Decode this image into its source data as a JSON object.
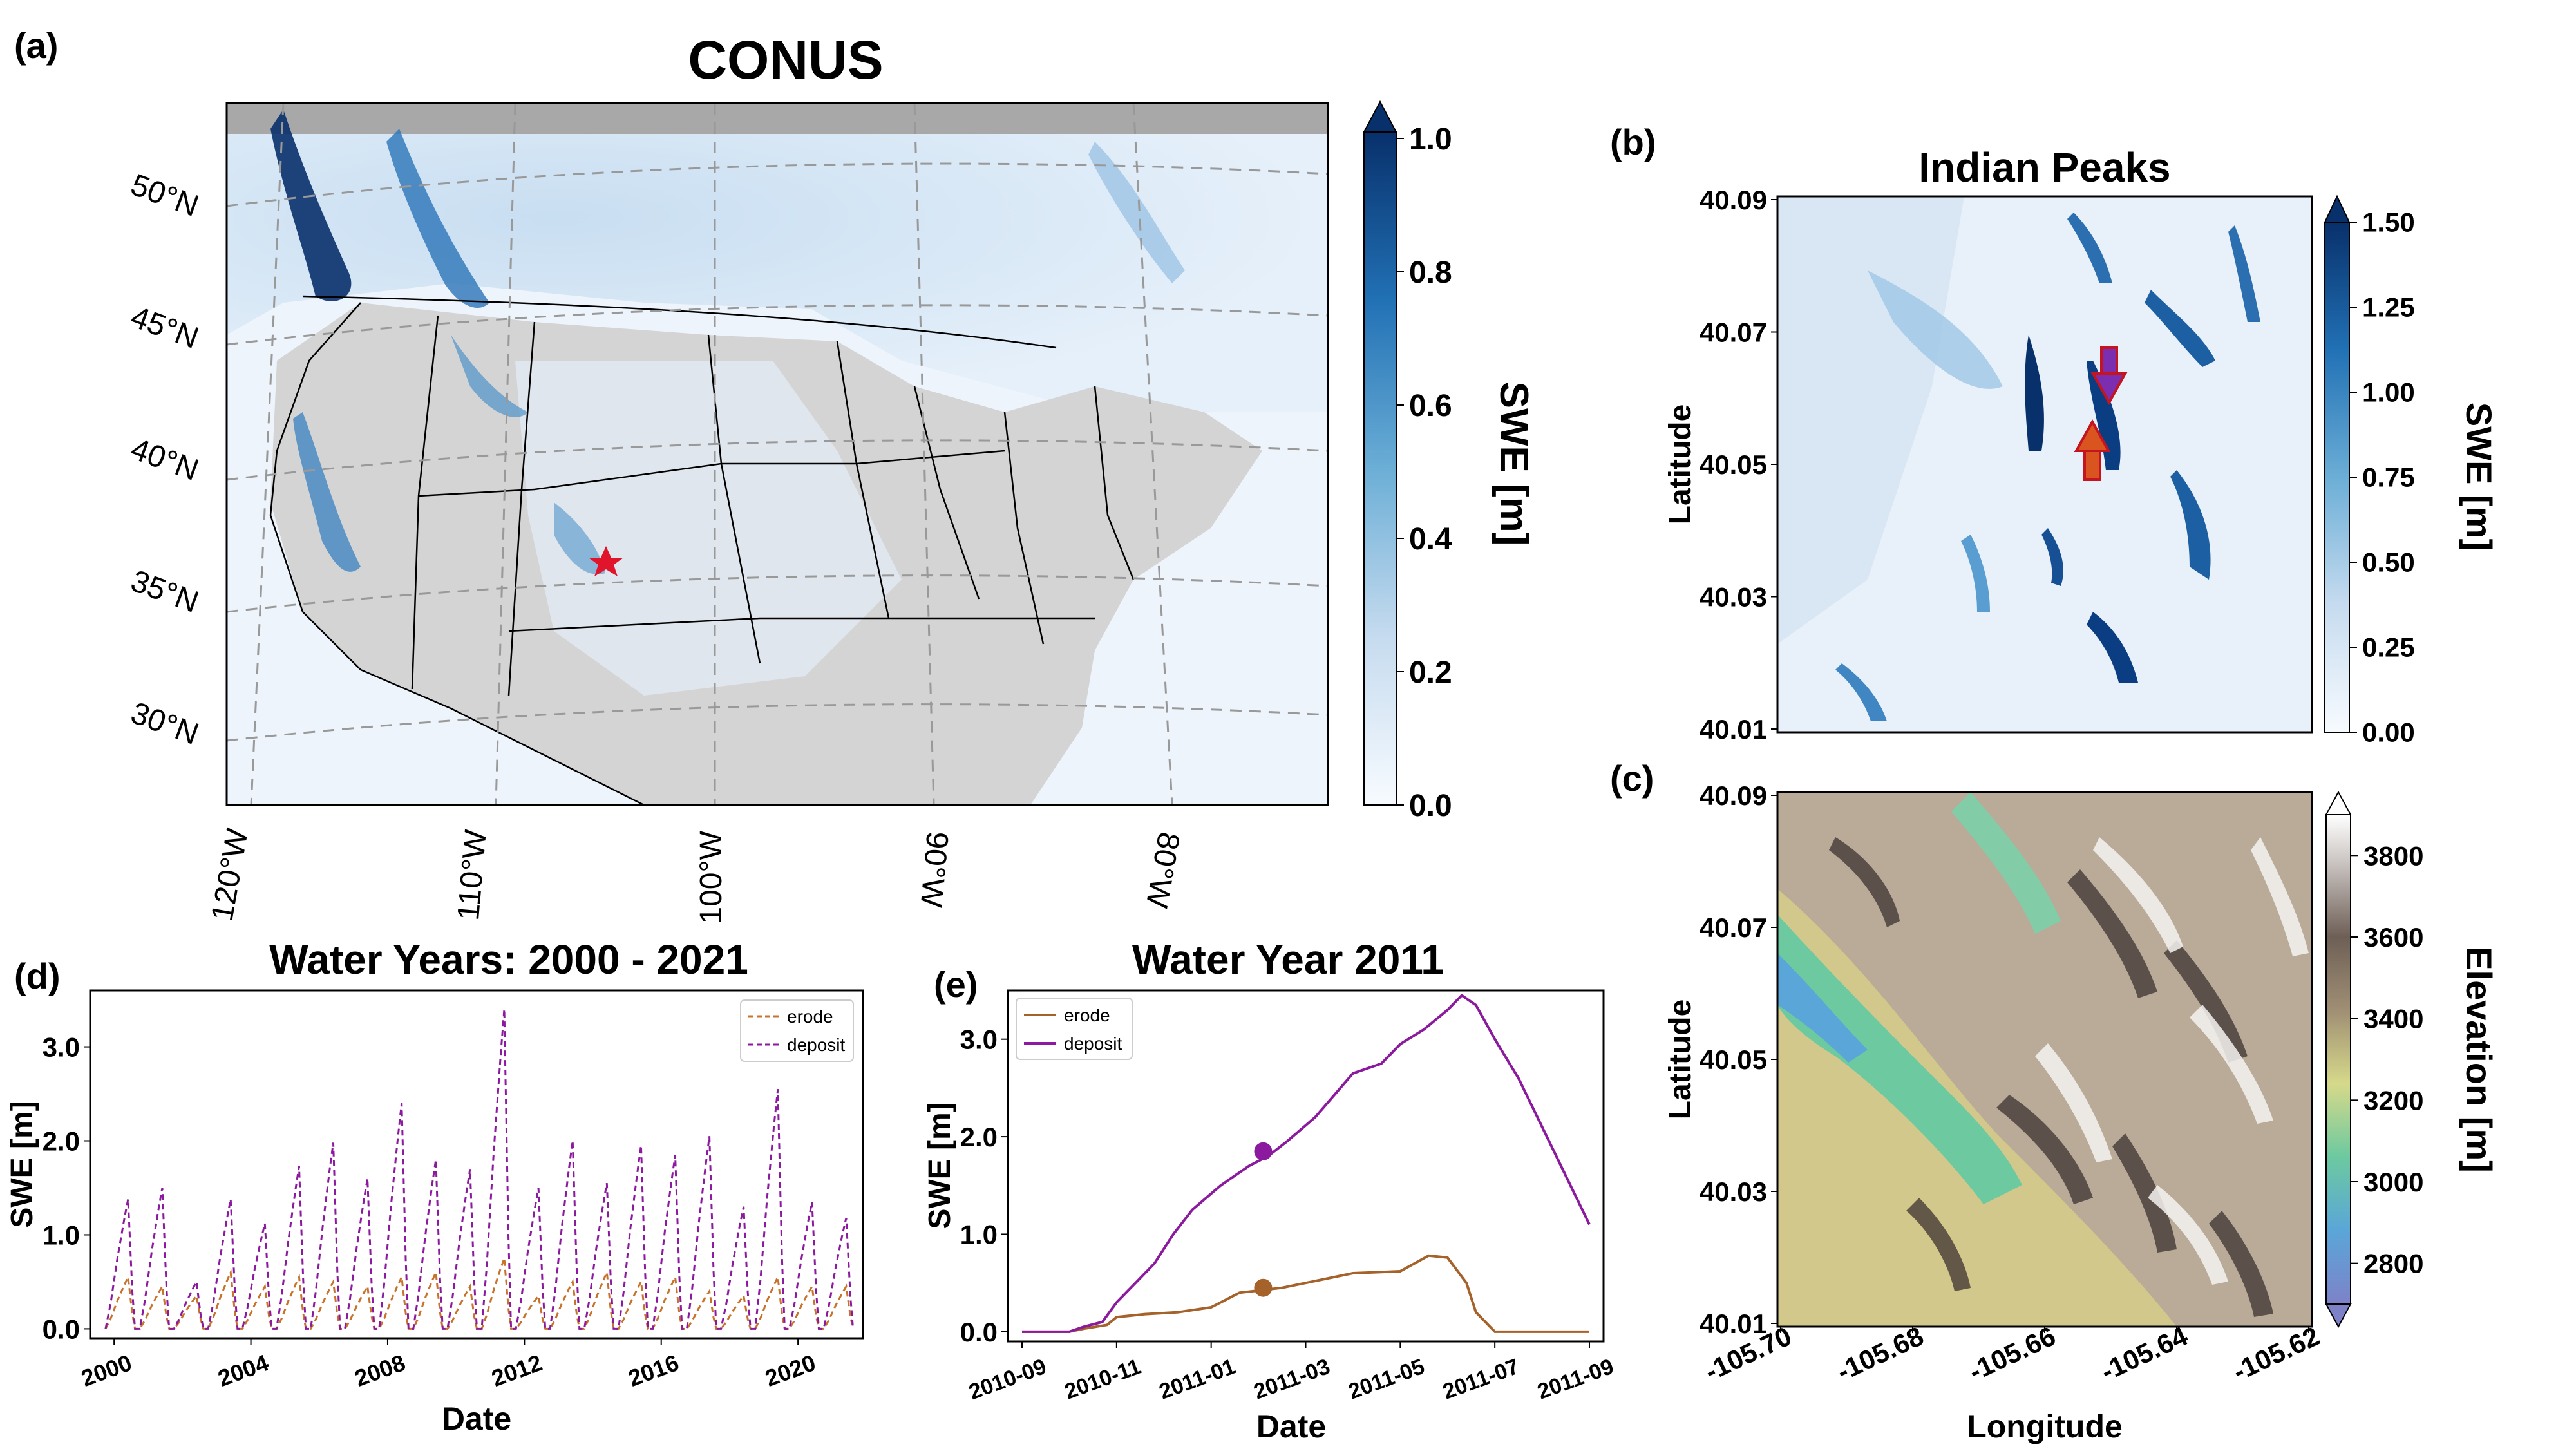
{
  "chart_data": [
    {
      "panel": "(a)",
      "type": "heatmap",
      "title": "CONUS",
      "lat_labels": [
        "50°N",
        "45°N",
        "40°N",
        "35°N",
        "30°N"
      ],
      "lon_labels": [
        "120°W",
        "110°W",
        "100°W",
        "90°W",
        "80°W"
      ],
      "colorbar": {
        "label": "SWE [m]",
        "ticks": [
          "0.0",
          "0.2",
          "0.4",
          "0.6",
          "0.8",
          "1.0"
        ],
        "range": [
          0,
          1.0
        ],
        "extend": "max"
      },
      "marker": "red star (Indian Peaks, Colorado)"
    },
    {
      "panel": "(b)",
      "type": "heatmap",
      "title": "Indian Peaks",
      "ylabel": "Latitude",
      "yticks": [
        "40.09",
        "40.07",
        "40.05",
        "40.03",
        "40.01"
      ],
      "colorbar": {
        "label": "SWE [m]",
        "ticks": [
          "0.00",
          "0.25",
          "0.50",
          "0.75",
          "1.00",
          "1.25",
          "1.50"
        ],
        "range": [
          0,
          1.5
        ],
        "extend": "max"
      },
      "annotations": [
        "deposit arrow (purple, pointing down)",
        "erode arrow (orange, pointing up)"
      ]
    },
    {
      "panel": "(c)",
      "type": "heatmap",
      "ylabel": "Latitude",
      "xlabel": "Longitude",
      "yticks": [
        "40.09",
        "40.07",
        "40.05",
        "40.03",
        "40.01"
      ],
      "xticks": [
        "-105.70",
        "-105.68",
        "-105.66",
        "-105.64",
        "-105.62"
      ],
      "colorbar": {
        "label": "Elevation [m]",
        "ticks": [
          "2800",
          "3000",
          "3200",
          "3400",
          "3600",
          "3800"
        ],
        "range": [
          2700,
          3900
        ],
        "extend": "both"
      }
    },
    {
      "panel": "(d)",
      "type": "line",
      "title": "Water Years: 2000 - 2021",
      "xlabel": "Date",
      "ylabel": "SWE [m]",
      "xticks": [
        "2000",
        "2004",
        "2008",
        "2012",
        "2016",
        "2020"
      ],
      "yticks": [
        "0.0",
        "1.0",
        "2.0",
        "3.0"
      ],
      "xlim": [
        1999.3,
        2021.9
      ],
      "ylim": [
        -0.1,
        3.6
      ],
      "legend": "top-right",
      "series": [
        {
          "name": "erode",
          "color": "#c8732b",
          "style": "dashed",
          "years": [
            2000,
            2001,
            2002,
            2003,
            2004,
            2005,
            2006,
            2007,
            2008,
            2009,
            2010,
            2011,
            2012,
            2013,
            2014,
            2015,
            2016,
            2017,
            2018,
            2019,
            2020,
            2021
          ],
          "peaks": [
            0.55,
            0.45,
            0.35,
            0.6,
            0.45,
            0.55,
            0.5,
            0.45,
            0.55,
            0.6,
            0.45,
            0.75,
            0.35,
            0.5,
            0.6,
            0.5,
            0.55,
            0.4,
            0.35,
            0.55,
            0.45,
            0.45
          ]
        },
        {
          "name": "deposit",
          "color": "#8b1a9e",
          "style": "dashed",
          "years": [
            2000,
            2001,
            2002,
            2003,
            2004,
            2005,
            2006,
            2007,
            2008,
            2009,
            2010,
            2011,
            2012,
            2013,
            2014,
            2015,
            2016,
            2017,
            2018,
            2019,
            2020,
            2021
          ],
          "peaks": [
            1.38,
            1.5,
            0.5,
            1.38,
            1.12,
            1.73,
            1.98,
            1.6,
            2.4,
            1.8,
            1.7,
            3.4,
            1.5,
            2.0,
            1.55,
            1.95,
            1.85,
            2.05,
            1.3,
            2.55,
            1.35,
            1.18
          ]
        }
      ]
    },
    {
      "panel": "(e)",
      "type": "line",
      "title": "Water Year 2011",
      "xlabel": "Date",
      "ylabel": "SWE [m]",
      "xticks": [
        "2010-09",
        "2010-11",
        "2011-01",
        "2011-03",
        "2011-05",
        "2011-07",
        "2011-09"
      ],
      "yticks": [
        "0.0",
        "1.0",
        "2.0",
        "3.0"
      ],
      "xlim": [
        -0.3,
        12.3
      ],
      "ylim": [
        -0.1,
        3.5
      ],
      "legend": "top-left",
      "series": [
        {
          "name": "erode",
          "color": "#a5622a",
          "x": [
            0,
            1,
            1.3,
            1.8,
            2.0,
            2.6,
            3.3,
            4.0,
            4.6,
            5.5,
            6.0,
            7.0,
            8.0,
            8.6,
            9.0,
            9.4,
            9.6,
            10.0,
            10.5,
            11.0,
            12.0
          ],
          "y": [
            0,
            0,
            0.03,
            0.07,
            0.15,
            0.18,
            0.2,
            0.25,
            0.4,
            0.45,
            0.5,
            0.6,
            0.62,
            0.78,
            0.76,
            0.5,
            0.2,
            0,
            0,
            0,
            0
          ]
        },
        {
          "name": "deposit",
          "color": "#8b1a9e",
          "x": [
            0,
            0.5,
            1.0,
            1.3,
            1.7,
            2.0,
            2.5,
            2.8,
            3.2,
            3.6,
            4.2,
            4.8,
            5.2,
            5.6,
            6.2,
            7.0,
            7.6,
            8.0,
            8.5,
            9.0,
            9.3,
            9.6,
            10.0,
            10.5,
            11.0,
            11.5,
            12.0
          ],
          "y": [
            0,
            0,
            0,
            0.05,
            0.1,
            0.3,
            0.55,
            0.7,
            1.0,
            1.25,
            1.5,
            1.7,
            1.8,
            1.95,
            2.2,
            2.65,
            2.75,
            2.95,
            3.1,
            3.3,
            3.45,
            3.35,
            3.0,
            2.6,
            2.1,
            1.6,
            1.1
          ]
        }
      ],
      "points": [
        {
          "series": "deposit",
          "x": 5.1,
          "y": 1.85
        },
        {
          "series": "erode",
          "x": 5.1,
          "y": 0.45
        }
      ]
    }
  ],
  "colors": {
    "swe_low": "#f7fbff",
    "swe_high": "#08306b",
    "land_gray": "#d4d4d4",
    "star": "#e0142b"
  }
}
